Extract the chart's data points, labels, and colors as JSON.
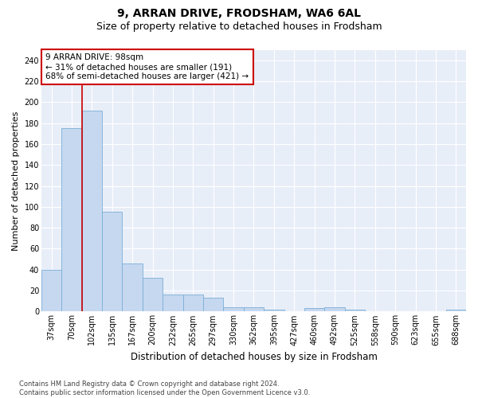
{
  "title1": "9, ARRAN DRIVE, FRODSHAM, WA6 6AL",
  "title2": "Size of property relative to detached houses in Frodsham",
  "xlabel": "Distribution of detached houses by size in Frodsham",
  "ylabel": "Number of detached properties",
  "categories": [
    "37sqm",
    "70sqm",
    "102sqm",
    "135sqm",
    "167sqm",
    "200sqm",
    "232sqm",
    "265sqm",
    "297sqm",
    "330sqm",
    "362sqm",
    "395sqm",
    "427sqm",
    "460sqm",
    "492sqm",
    "525sqm",
    "558sqm",
    "590sqm",
    "623sqm",
    "655sqm",
    "688sqm"
  ],
  "values": [
    40,
    175,
    192,
    95,
    46,
    32,
    16,
    16,
    13,
    4,
    4,
    2,
    0,
    3,
    4,
    2,
    0,
    0,
    0,
    0,
    2
  ],
  "bar_color": "#c5d8f0",
  "bar_edge_color": "#7aaed6",
  "vline_x_index": 2,
  "vline_color": "#cc0000",
  "annotation_text": "9 ARRAN DRIVE: 98sqm\n← 31% of detached houses are smaller (191)\n68% of semi-detached houses are larger (421) →",
  "annotation_box_color": "#ffffff",
  "annotation_box_edge": "#cc0000",
  "ylim": [
    0,
    250
  ],
  "yticks": [
    0,
    20,
    40,
    60,
    80,
    100,
    120,
    140,
    160,
    180,
    200,
    220,
    240
  ],
  "bg_color": "#e8eef8",
  "grid_color": "#ffffff",
  "fig_bg_color": "#ffffff",
  "footnote": "Contains HM Land Registry data © Crown copyright and database right 2024.\nContains public sector information licensed under the Open Government Licence v3.0.",
  "title1_fontsize": 10,
  "title2_fontsize": 9,
  "xlabel_fontsize": 8.5,
  "ylabel_fontsize": 8,
  "tick_fontsize": 7,
  "annot_fontsize": 7.5,
  "footnote_fontsize": 6
}
